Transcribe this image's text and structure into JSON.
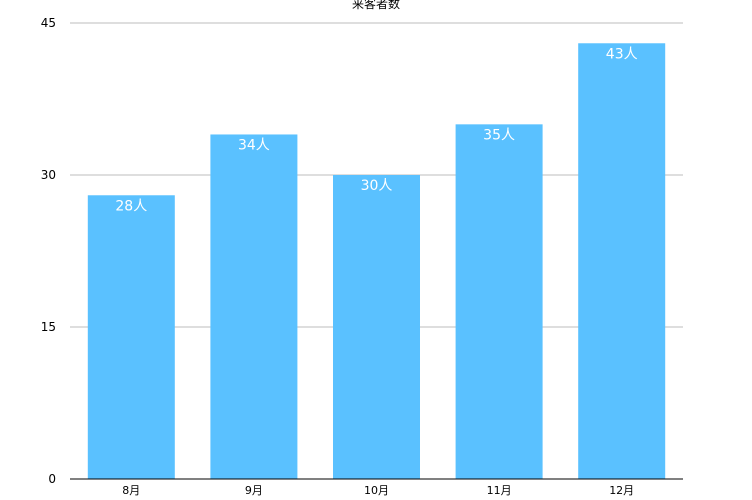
{
  "chart_data": {
    "type": "bar",
    "title": "来客者数",
    "xlabel": "",
    "ylabel": "",
    "categories": [
      "8月",
      "9月",
      "10月",
      "11月",
      "12月"
    ],
    "values": [
      28,
      34,
      30,
      35,
      43
    ],
    "data_labels": [
      "28人",
      "34人",
      "30人",
      "35人",
      "43人"
    ],
    "ylim": [
      0,
      45
    ],
    "yticks": [
      0,
      15,
      30,
      45
    ],
    "grid": true,
    "legend": "none",
    "colors": {
      "bar": "#5AC1FF",
      "grid": "#BDBDBD",
      "axis": "#000000",
      "data_label": "#FFFFFF"
    }
  }
}
